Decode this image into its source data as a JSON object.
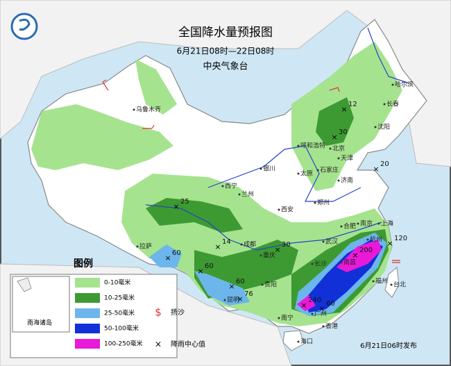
{
  "header": {
    "title": "全国降水量预报图",
    "period": "6月21日08时—22日08时",
    "issuer": "中央气象台"
  },
  "legend": {
    "title": "图例",
    "items": [
      "0-10毫米",
      "10-25毫米",
      "25-50毫米",
      "50-100毫米",
      "100-250毫米"
    ],
    "symbols": [
      "扬沙",
      "降雨中心值"
    ]
  },
  "inset_label": "南海诸岛",
  "footer": "6月21日06时发布",
  "cities": [
    "乌鲁木齐",
    "哈尔滨",
    "长春",
    "沈阳",
    "呼和浩特",
    "北京",
    "天津",
    "石家庄",
    "太原",
    "银川",
    "济南",
    "西宁",
    "兰州",
    "郑州",
    "西安",
    "合肥",
    "南京",
    "上海",
    "杭州",
    "武汉",
    "成都",
    "重庆",
    "长沙",
    "南昌",
    "福州",
    "台北",
    "贵阳",
    "拉萨",
    "昆明",
    "南宁",
    "广州",
    "香港",
    "海口"
  ],
  "rain_centers": [
    12,
    30,
    20,
    25,
    14,
    30,
    60,
    60,
    60,
    76,
    200,
    120,
    240,
    60
  ]
}
